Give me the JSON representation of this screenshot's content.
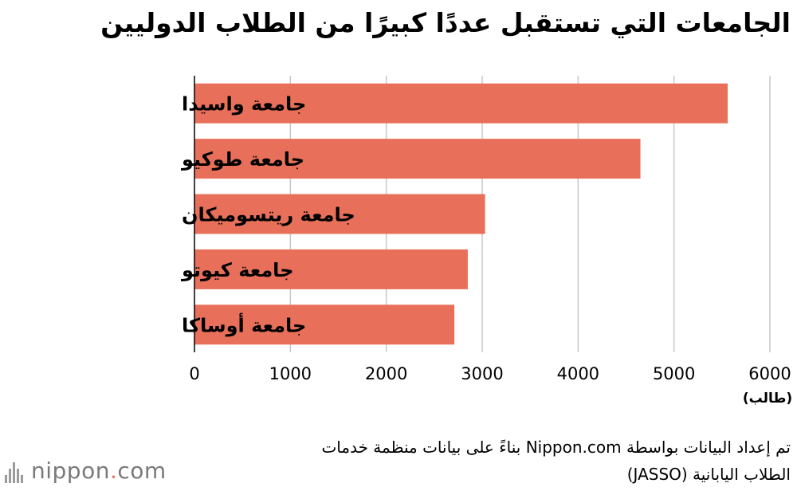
{
  "chart_data": {
    "type": "bar",
    "orientation": "horizontal",
    "title": "الجامعات التي تستقبل عددًا كبيرًا من الطلاب الدوليين",
    "categories": [
      "جامعة واسيدا",
      "جامعة طوكيو",
      "جامعة ريتسوميكان",
      "جامعة كيوتو",
      "جامعة أوساكا"
    ],
    "values": [
      5560,
      4650,
      3030,
      2850,
      2710
    ],
    "xlim": [
      0,
      6000
    ],
    "xticks": [
      "0",
      "1000",
      "2000",
      "3000",
      "4000",
      "5000",
      "6000"
    ],
    "unit_label": "(طالب)",
    "bar_color": "#e8705a",
    "grid": true
  },
  "source": {
    "line1": "تم إعداد البيانات بواسطة Nippon.com بناءً على بيانات منظمة خدمات",
    "line2": "الطلاب اليابانية  (JASSO)"
  },
  "logo": {
    "prefix": "nippon",
    "dot": ".",
    "suffix": "com"
  }
}
